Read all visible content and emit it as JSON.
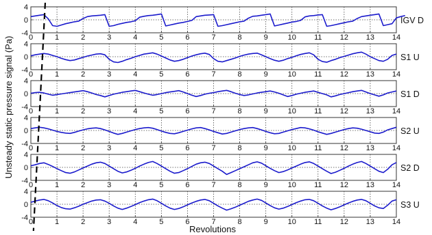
{
  "chart_data": {
    "type": "line",
    "ylabel": "Unsteady static pressure signal (Pa)",
    "xlabel": "Revolutions",
    "xlim": [
      0,
      14
    ],
    "x_ticks": [
      0,
      1,
      2,
      3,
      4,
      5,
      6,
      7,
      8,
      9,
      10,
      11,
      12,
      13,
      14
    ],
    "ylim": [
      -4,
      4
    ],
    "y_ticks": [
      4,
      0,
      -4
    ],
    "y_tick_labels": [
      "4",
      "0",
      "-4"
    ],
    "grid": "dotted vertical lines at integer revolutions, dotted zero line",
    "line_color": "#1a1acc",
    "marker_line": {
      "style": "dashed",
      "color": "#000000",
      "x_top": 0.55,
      "x_bottom": 0.1
    },
    "panels": [
      {
        "label": "IGV D",
        "samples_per_rev": 6,
        "values": [
          1.0,
          1.2,
          1.4,
          1.6,
          0.3,
          -1.8,
          -2.0,
          -1.6,
          -1.2,
          -0.9,
          -0.6,
          -0.4,
          0.4,
          1.0,
          1.2,
          1.3,
          1.4,
          1.6,
          -2.0,
          -1.8,
          -1.4,
          -1.1,
          -0.8,
          -0.6,
          -0.3,
          0.8,
          1.1,
          1.3,
          1.4,
          1.6,
          1.8,
          -1.9,
          -1.6,
          -1.3,
          -1.0,
          -0.8,
          -0.5,
          -0.2,
          1.0,
          1.2,
          1.4,
          1.5,
          1.6,
          -2.0,
          -1.8,
          -1.5,
          -1.2,
          -0.9,
          -0.6,
          -0.4,
          0.5,
          1.1,
          1.2,
          1.4,
          1.6,
          1.8,
          -1.9,
          -1.6,
          -1.3,
          -1.0,
          -0.7,
          -0.5,
          -0.2,
          0.9,
          1.2,
          1.3,
          1.5,
          1.6,
          -2.0,
          -1.8,
          -1.5,
          -1.2,
          -0.9,
          -0.6,
          -0.4,
          0.4,
          1.0,
          1.2,
          1.4,
          1.6,
          1.8,
          -1.8,
          -1.5,
          -1.2,
          0.6,
          1.0,
          1.3
        ]
      },
      {
        "label": "S1 U",
        "samples_per_rev": 6,
        "values": [
          0.3,
          0.6,
          0.8,
          1.0,
          0.8,
          0.4,
          0.0,
          -0.5,
          -0.9,
          -1.2,
          -1.0,
          -0.6,
          -0.2,
          0.2,
          0.5,
          0.8,
          0.9,
          0.6,
          -0.8,
          -1.6,
          -1.8,
          -1.4,
          -0.9,
          -0.5,
          0.0,
          0.4,
          0.8,
          1.0,
          1.2,
          0.8,
          0.2,
          -0.4,
          -1.0,
          -1.4,
          -1.2,
          -0.8,
          -0.3,
          0.2,
          0.6,
          0.9,
          1.1,
          0.7,
          -0.6,
          -1.4,
          -1.6,
          -1.2,
          -0.8,
          -0.4,
          0.1,
          0.5,
          0.8,
          1.0,
          1.1,
          0.6,
          0.0,
          -0.6,
          -1.1,
          -1.4,
          -1.1,
          -0.6,
          -0.2,
          0.3,
          0.7,
          1.0,
          1.2,
          0.6,
          -0.8,
          -1.5,
          -1.7,
          -1.2,
          -0.8,
          -0.3,
          0.1,
          0.5,
          0.9,
          1.2,
          1.4,
          0.8,
          0.0,
          -0.6,
          -1.2,
          -1.4,
          -0.8,
          0.4,
          0.8
        ]
      },
      {
        "label": "S1 D",
        "samples_per_rev": 6,
        "values": [
          0.1,
          0.3,
          0.4,
          0.2,
          -0.2,
          -0.5,
          -0.3,
          -0.1,
          0.1,
          0.3,
          0.5,
          0.7,
          0.9,
          0.6,
          0.2,
          -0.3,
          -0.6,
          -1.0,
          -0.6,
          -0.2,
          0.1,
          0.4,
          0.6,
          0.8,
          1.0,
          0.6,
          0.2,
          -0.2,
          -0.5,
          -0.3,
          0.0,
          0.3,
          0.5,
          0.7,
          0.9,
          0.5,
          0.0,
          -0.5,
          -0.9,
          -0.6,
          -0.2,
          0.1,
          0.3,
          0.6,
          0.8,
          1.0,
          0.6,
          0.1,
          -0.3,
          -0.6,
          -0.4,
          -0.1,
          0.2,
          0.4,
          0.6,
          0.8,
          0.5,
          0.1,
          -0.4,
          -0.9,
          -0.6,
          -0.2,
          0.1,
          0.4,
          0.6,
          0.8,
          0.4,
          0.0,
          -0.4,
          -1.0,
          -0.7,
          -0.3,
          0.0,
          0.3,
          0.6,
          0.8,
          1.0,
          0.5,
          0.0,
          -0.4,
          -0.8,
          -0.4,
          0.2,
          0.5,
          0.8
        ]
      },
      {
        "label": "S2 U",
        "samples_per_rev": 6,
        "values": [
          0.6,
          0.8,
          1.0,
          0.8,
          0.5,
          0.1,
          -0.3,
          -0.6,
          -0.8,
          -0.9,
          -0.6,
          -0.2,
          0.2,
          0.5,
          0.7,
          0.8,
          0.6,
          0.2,
          -0.3,
          -0.8,
          -1.2,
          -0.9,
          -0.5,
          -0.1,
          0.3,
          0.6,
          0.8,
          0.9,
          0.7,
          0.3,
          -0.2,
          -0.6,
          -0.9,
          -1.0,
          -0.7,
          -0.3,
          0.1,
          0.5,
          0.8,
          0.9,
          0.6,
          0.2,
          -0.3,
          -0.7,
          -1.1,
          -0.9,
          -0.5,
          -0.1,
          0.3,
          0.6,
          0.8,
          0.9,
          0.6,
          0.2,
          -0.3,
          -0.7,
          -1.0,
          -0.9,
          -0.5,
          -0.1,
          0.3,
          0.6,
          0.9,
          0.8,
          0.5,
          0.1,
          -0.4,
          -0.8,
          -1.2,
          -0.9,
          -0.5,
          -0.1,
          0.3,
          0.6,
          0.8,
          0.7,
          0.4,
          0.0,
          -0.4,
          -0.8,
          -0.9,
          -0.5,
          0.2,
          0.6,
          1.0
        ]
      },
      {
        "label": "S2 D",
        "samples_per_rev": 6,
        "values": [
          0.5,
          0.8,
          1.2,
          1.4,
          0.9,
          0.3,
          -0.4,
          -1.0,
          -1.6,
          -1.8,
          -1.4,
          -0.8,
          -0.2,
          0.4,
          1.0,
          1.4,
          1.6,
          1.2,
          0.4,
          -0.4,
          -1.2,
          -1.7,
          -1.4,
          -0.9,
          -0.3,
          0.4,
          1.0,
          1.5,
          1.8,
          1.2,
          0.4,
          -0.4,
          -1.2,
          -1.8,
          -1.6,
          -1.0,
          -0.4,
          0.3,
          1.0,
          1.4,
          1.6,
          1.2,
          0.4,
          -0.4,
          -1.2,
          -2.2,
          -1.6,
          -1.0,
          -0.4,
          0.2,
          0.8,
          1.4,
          1.7,
          1.3,
          0.5,
          -0.3,
          -1.0,
          -1.6,
          -1.3,
          -0.8,
          -0.2,
          0.4,
          1.0,
          1.5,
          1.7,
          1.2,
          0.4,
          -0.4,
          -1.2,
          -1.9,
          -1.5,
          -0.9,
          -0.3,
          0.4,
          1.0,
          1.5,
          1.8,
          1.2,
          0.4,
          -0.4,
          -1.2,
          -1.6,
          -0.6,
          0.8,
          1.5
        ]
      },
      {
        "label": "S3 U",
        "samples_per_rev": 6,
        "values": [
          0.6,
          1.0,
          1.3,
          1.5,
          1.1,
          0.4,
          -0.4,
          -1.0,
          -1.4,
          -1.5,
          -1.1,
          -0.6,
          0.0,
          0.5,
          1.0,
          1.3,
          1.4,
          1.0,
          0.3,
          -0.5,
          -1.2,
          -1.6,
          -1.2,
          -0.7,
          -0.1,
          0.5,
          1.0,
          1.4,
          1.6,
          1.1,
          0.3,
          -0.5,
          -1.2,
          -1.6,
          -1.3,
          -0.8,
          -0.2,
          0.4,
          0.9,
          1.3,
          1.5,
          1.1,
          0.3,
          -0.5,
          -1.2,
          -1.8,
          -1.4,
          -0.9,
          -0.3,
          0.3,
          0.9,
          1.3,
          1.6,
          1.2,
          0.4,
          -0.4,
          -1.1,
          -1.5,
          -1.2,
          -0.7,
          -0.1,
          0.5,
          1.0,
          1.4,
          1.5,
          1.1,
          0.3,
          -0.5,
          -1.2,
          -1.7,
          -1.3,
          -0.8,
          -0.2,
          0.4,
          0.9,
          1.3,
          1.5,
          1.1,
          0.3,
          -0.5,
          -1.1,
          -1.3,
          -0.3,
          1.0,
          1.4
        ]
      }
    ]
  }
}
